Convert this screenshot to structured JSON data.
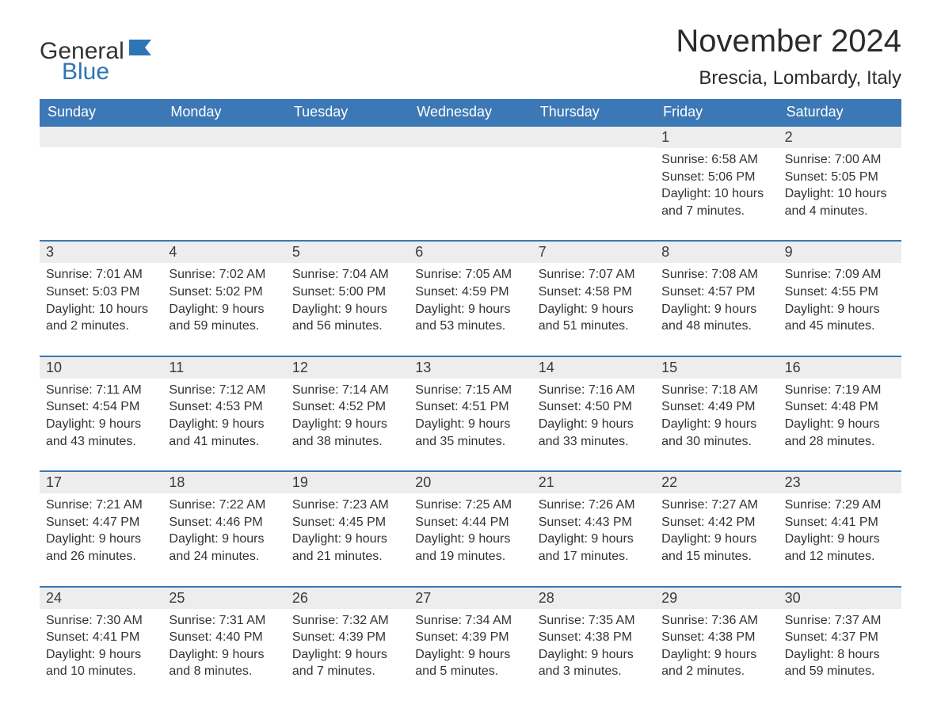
{
  "logo": {
    "word1": "General",
    "word2": "Blue"
  },
  "title": "November 2024",
  "location": "Brescia, Lombardy, Italy",
  "colors": {
    "header_bg": "#3b78b5",
    "header_text": "#ffffff",
    "row_divider": "#3b78b5",
    "daynum_bg": "#ededed",
    "body_text": "#333333",
    "logo_blue": "#2f74b5",
    "page_bg": "#ffffff"
  },
  "days_of_week": [
    "Sunday",
    "Monday",
    "Tuesday",
    "Wednesday",
    "Thursday",
    "Friday",
    "Saturday"
  ],
  "weeks": [
    [
      {
        "empty": true
      },
      {
        "empty": true
      },
      {
        "empty": true
      },
      {
        "empty": true
      },
      {
        "empty": true
      },
      {
        "day": "1",
        "sunrise": "Sunrise: 6:58 AM",
        "sunset": "Sunset: 5:06 PM",
        "daylight": "Daylight: 10 hours and 7 minutes."
      },
      {
        "day": "2",
        "sunrise": "Sunrise: 7:00 AM",
        "sunset": "Sunset: 5:05 PM",
        "daylight": "Daylight: 10 hours and 4 minutes."
      }
    ],
    [
      {
        "day": "3",
        "sunrise": "Sunrise: 7:01 AM",
        "sunset": "Sunset: 5:03 PM",
        "daylight": "Daylight: 10 hours and 2 minutes."
      },
      {
        "day": "4",
        "sunrise": "Sunrise: 7:02 AM",
        "sunset": "Sunset: 5:02 PM",
        "daylight": "Daylight: 9 hours and 59 minutes."
      },
      {
        "day": "5",
        "sunrise": "Sunrise: 7:04 AM",
        "sunset": "Sunset: 5:00 PM",
        "daylight": "Daylight: 9 hours and 56 minutes."
      },
      {
        "day": "6",
        "sunrise": "Sunrise: 7:05 AM",
        "sunset": "Sunset: 4:59 PM",
        "daylight": "Daylight: 9 hours and 53 minutes."
      },
      {
        "day": "7",
        "sunrise": "Sunrise: 7:07 AM",
        "sunset": "Sunset: 4:58 PM",
        "daylight": "Daylight: 9 hours and 51 minutes."
      },
      {
        "day": "8",
        "sunrise": "Sunrise: 7:08 AM",
        "sunset": "Sunset: 4:57 PM",
        "daylight": "Daylight: 9 hours and 48 minutes."
      },
      {
        "day": "9",
        "sunrise": "Sunrise: 7:09 AM",
        "sunset": "Sunset: 4:55 PM",
        "daylight": "Daylight: 9 hours and 45 minutes."
      }
    ],
    [
      {
        "day": "10",
        "sunrise": "Sunrise: 7:11 AM",
        "sunset": "Sunset: 4:54 PM",
        "daylight": "Daylight: 9 hours and 43 minutes."
      },
      {
        "day": "11",
        "sunrise": "Sunrise: 7:12 AM",
        "sunset": "Sunset: 4:53 PM",
        "daylight": "Daylight: 9 hours and 41 minutes."
      },
      {
        "day": "12",
        "sunrise": "Sunrise: 7:14 AM",
        "sunset": "Sunset: 4:52 PM",
        "daylight": "Daylight: 9 hours and 38 minutes."
      },
      {
        "day": "13",
        "sunrise": "Sunrise: 7:15 AM",
        "sunset": "Sunset: 4:51 PM",
        "daylight": "Daylight: 9 hours and 35 minutes."
      },
      {
        "day": "14",
        "sunrise": "Sunrise: 7:16 AM",
        "sunset": "Sunset: 4:50 PM",
        "daylight": "Daylight: 9 hours and 33 minutes."
      },
      {
        "day": "15",
        "sunrise": "Sunrise: 7:18 AM",
        "sunset": "Sunset: 4:49 PM",
        "daylight": "Daylight: 9 hours and 30 minutes."
      },
      {
        "day": "16",
        "sunrise": "Sunrise: 7:19 AM",
        "sunset": "Sunset: 4:48 PM",
        "daylight": "Daylight: 9 hours and 28 minutes."
      }
    ],
    [
      {
        "day": "17",
        "sunrise": "Sunrise: 7:21 AM",
        "sunset": "Sunset: 4:47 PM",
        "daylight": "Daylight: 9 hours and 26 minutes."
      },
      {
        "day": "18",
        "sunrise": "Sunrise: 7:22 AM",
        "sunset": "Sunset: 4:46 PM",
        "daylight": "Daylight: 9 hours and 24 minutes."
      },
      {
        "day": "19",
        "sunrise": "Sunrise: 7:23 AM",
        "sunset": "Sunset: 4:45 PM",
        "daylight": "Daylight: 9 hours and 21 minutes."
      },
      {
        "day": "20",
        "sunrise": "Sunrise: 7:25 AM",
        "sunset": "Sunset: 4:44 PM",
        "daylight": "Daylight: 9 hours and 19 minutes."
      },
      {
        "day": "21",
        "sunrise": "Sunrise: 7:26 AM",
        "sunset": "Sunset: 4:43 PM",
        "daylight": "Daylight: 9 hours and 17 minutes."
      },
      {
        "day": "22",
        "sunrise": "Sunrise: 7:27 AM",
        "sunset": "Sunset: 4:42 PM",
        "daylight": "Daylight: 9 hours and 15 minutes."
      },
      {
        "day": "23",
        "sunrise": "Sunrise: 7:29 AM",
        "sunset": "Sunset: 4:41 PM",
        "daylight": "Daylight: 9 hours and 12 minutes."
      }
    ],
    [
      {
        "day": "24",
        "sunrise": "Sunrise: 7:30 AM",
        "sunset": "Sunset: 4:41 PM",
        "daylight": "Daylight: 9 hours and 10 minutes."
      },
      {
        "day": "25",
        "sunrise": "Sunrise: 7:31 AM",
        "sunset": "Sunset: 4:40 PM",
        "daylight": "Daylight: 9 hours and 8 minutes."
      },
      {
        "day": "26",
        "sunrise": "Sunrise: 7:32 AM",
        "sunset": "Sunset: 4:39 PM",
        "daylight": "Daylight: 9 hours and 7 minutes."
      },
      {
        "day": "27",
        "sunrise": "Sunrise: 7:34 AM",
        "sunset": "Sunset: 4:39 PM",
        "daylight": "Daylight: 9 hours and 5 minutes."
      },
      {
        "day": "28",
        "sunrise": "Sunrise: 7:35 AM",
        "sunset": "Sunset: 4:38 PM",
        "daylight": "Daylight: 9 hours and 3 minutes."
      },
      {
        "day": "29",
        "sunrise": "Sunrise: 7:36 AM",
        "sunset": "Sunset: 4:38 PM",
        "daylight": "Daylight: 9 hours and 2 minutes."
      },
      {
        "day": "30",
        "sunrise": "Sunrise: 7:37 AM",
        "sunset": "Sunset: 4:37 PM",
        "daylight": "Daylight: 8 hours and 59 minutes."
      }
    ]
  ]
}
